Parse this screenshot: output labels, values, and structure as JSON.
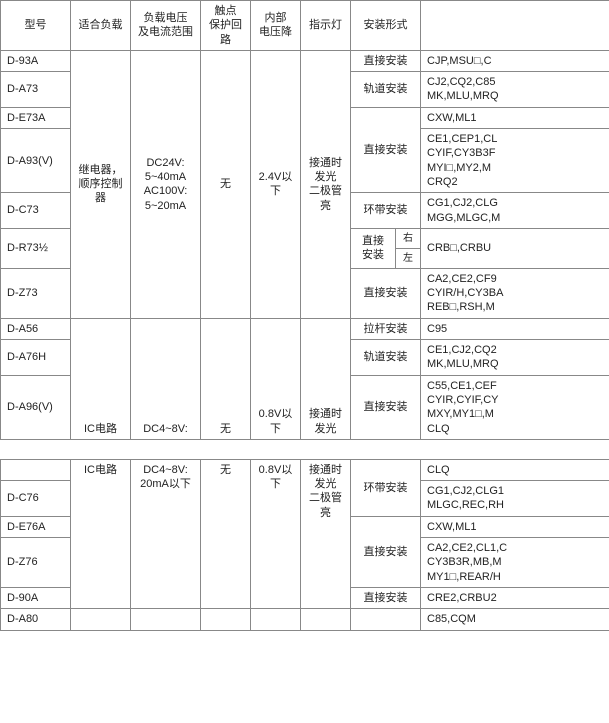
{
  "headers": {
    "model": "型号",
    "load": "适合负载",
    "voltCurrent": "负载电压\n及电流范围",
    "protect": "触点\n保护回路",
    "drop": "内部\n电压降",
    "led": "指示灯",
    "mount": "安装形式"
  },
  "section1": {
    "load": "继电器，\n顺序控制器",
    "voltCurrent": "DC24V:\n5~40mA\nAC100V:\n5~20mA",
    "protect": "无",
    "drop": "2.4V以下",
    "led": "接通时\n发光\n二极管亮",
    "rows": {
      "r1": {
        "model": "D-93A",
        "mount": "直接安装",
        "last": "CJP,MSU□,C"
      },
      "r2": {
        "model": "D-A73",
        "mount": "轨道安装",
        "last": "CJ2,CQ2,C85\nMK,MLU,MRQ"
      },
      "r3": {
        "model": "D-E73A",
        "mount": "",
        "last": "CXW,ML1"
      },
      "r4": {
        "model": "D-A93(V)",
        "mount": "直接安装",
        "last": "CE1,CEP1,CL\nCYIF,CY3B3F\nMYI□,MY2,M\nCRQ2"
      },
      "r5": {
        "model": "D-C73",
        "mount": "环带安装",
        "last": "CG1,CJ2,CLG\nMGG,MLGC,M"
      },
      "r6": {
        "model": "D-R73½",
        "mountMain": "直接\n安装",
        "mountRight": "右",
        "mountLeft": "左",
        "last": "CRB□,CRBU"
      },
      "r7": {
        "model": "D-Z73",
        "mount": "直接安装",
        "last": "CA2,CE2,CF9\nCYIR/H,CY3BA\nREB□,RSH,M"
      }
    }
  },
  "section2": {
    "load": "IC电路",
    "voltCurrent": "DC4~8V:",
    "protect": "无",
    "drop": "0.8V以下",
    "led": "接通时\n发光",
    "rows": {
      "r1": {
        "model": "D-A56",
        "mount": "拉杆安装",
        "last": "C95"
      },
      "r2": {
        "model": "D-A76H",
        "mount": "轨道安装",
        "last": "CE1,CJ2,CQ2\nMK,MLU,MRQ"
      },
      "r3": {
        "model": "D-A96(V)",
        "mount": "直接安装",
        "last": "C55,CE1,CEF\nCYIR,CYIF,CY\nMXY,MY1□,M\nCLQ"
      }
    }
  },
  "section3": {
    "load": "IC电路",
    "voltCurrent": "DC4~8V:\n20mA以下",
    "protect": "无",
    "drop": "0.8V以下",
    "led": "接通时\n发光\n二极管亮",
    "rows": {
      "r0": {
        "last": "CLQ"
      },
      "r1": {
        "model": "D-C76",
        "mount": "环带安装",
        "last": "CG1,CJ2,CLG1\nMLGC,REC,RH"
      },
      "r2": {
        "model": "D-E76A",
        "mount": "",
        "last": "CXW,ML1"
      },
      "r3": {
        "model": "D-Z76",
        "mount": "直接安装",
        "last": "CA2,CE2,CL1,C\nCY3B3R,MB,M\nMY1□,REAR/H"
      },
      "r4": {
        "model": "D-90A",
        "mount": "直接安装",
        "last": "CRE2,CRBU2"
      },
      "r5": {
        "model": "D-A80",
        "mount": "",
        "last": "C85,CQM"
      }
    }
  }
}
